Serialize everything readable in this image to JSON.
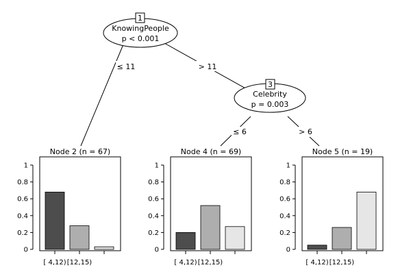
{
  "inner_nodes": [
    {
      "id": "1",
      "variable": "KnowingPeople",
      "pvalue": "p < 0.001"
    },
    {
      "id": "3",
      "variable": "Celebrity",
      "pvalue": "p = 0.003"
    }
  ],
  "edges": [
    {
      "label": "≤ 11"
    },
    {
      "label": "> 11"
    },
    {
      "label": "≤ 6"
    },
    {
      "label": "> 6"
    }
  ],
  "terminal_nodes": [
    {
      "title": "Node 2 (n = 67)"
    },
    {
      "title": "Node 4 (n = 69)"
    },
    {
      "title": "Node 5 (n = 19)"
    }
  ],
  "chart_data": [
    {
      "type": "bar",
      "title": "Node 2 (n = 67)",
      "categories": [
        "[ 4,12)",
        "[12,15)",
        ""
      ],
      "values": [
        0.68,
        0.28,
        0.03
      ],
      "ylim": [
        0,
        1
      ],
      "yticks": [
        "0",
        "0.2",
        "0.4",
        "0.6",
        "0.8",
        "1"
      ],
      "colors": [
        "#4d4d4d",
        "#aeaeae",
        "#e6e6e6"
      ]
    },
    {
      "type": "bar",
      "title": "Node 4 (n = 69)",
      "categories": [
        "[ 4,12)",
        "[12,15)",
        ""
      ],
      "values": [
        0.2,
        0.52,
        0.27
      ],
      "ylim": [
        0,
        1
      ],
      "yticks": [
        "0",
        "0.2",
        "0.4",
        "0.6",
        "0.8",
        "1"
      ],
      "colors": [
        "#4d4d4d",
        "#aeaeae",
        "#e6e6e6"
      ]
    },
    {
      "type": "bar",
      "title": "Node 5 (n = 19)",
      "categories": [
        "[ 4,12)",
        "[12,15)",
        ""
      ],
      "values": [
        0.05,
        0.26,
        0.68
      ],
      "ylim": [
        0,
        1
      ],
      "yticks": [
        "0",
        "0.2",
        "0.4",
        "0.6",
        "0.8",
        "1"
      ],
      "colors": [
        "#4d4d4d",
        "#aeaeae",
        "#e6e6e6"
      ]
    }
  ]
}
